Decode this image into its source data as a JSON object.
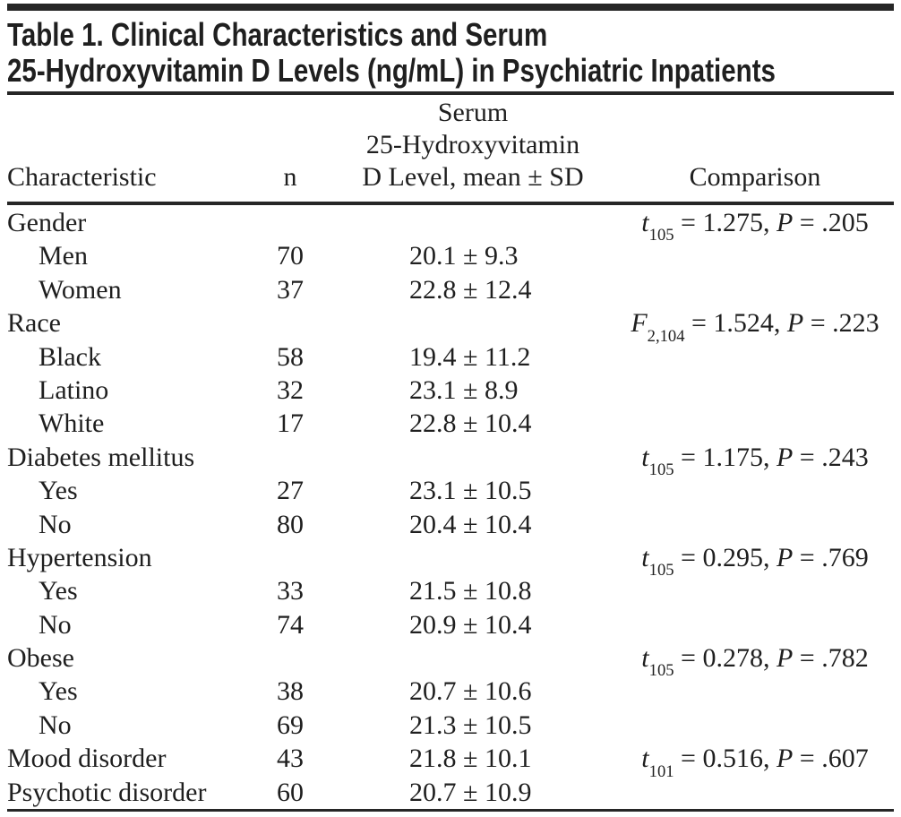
{
  "title": {
    "line1": "Table 1. Clinical Characteristics and Serum",
    "line2": "25-Hydroxyvitamin D Levels (ng/mL) in Psychiatric Inpatients"
  },
  "header": {
    "characteristic": "Characteristic",
    "n": "n",
    "serum_line1": "Serum",
    "serum_line2": "25-Hydroxyvitamin",
    "serum_line3": "D Level, mean ± SD",
    "comparison": "Comparison"
  },
  "colors": {
    "background": "#ffffff",
    "text": "#1f1f1f",
    "rule": "#262626"
  },
  "rows": [
    {
      "label": "Gender",
      "indent": 0,
      "n": "",
      "mean": "",
      "comparison": {
        "stat": "t",
        "sub": "105",
        "eq": " = 1.275, ",
        "p": "P",
        "peq": " = .205"
      }
    },
    {
      "label": "Men",
      "indent": 1,
      "n": "70",
      "mean": "20.1 ± 9.3"
    },
    {
      "label": "Women",
      "indent": 1,
      "n": "37",
      "mean": "22.8 ± 12.4"
    },
    {
      "label": "Race",
      "indent": 0,
      "n": "",
      "mean": "",
      "comparison": {
        "stat": "F",
        "sub": "2,104",
        "eq": " = 1.524, ",
        "p": "P",
        "peq": " = .223"
      }
    },
    {
      "label": "Black",
      "indent": 1,
      "n": "58",
      "mean": "19.4 ± 11.2"
    },
    {
      "label": "Latino",
      "indent": 1,
      "n": "32",
      "mean": "23.1 ± 8.9"
    },
    {
      "label": "White",
      "indent": 1,
      "n": "17",
      "mean": "22.8 ± 10.4"
    },
    {
      "label": "Diabetes mellitus",
      "indent": 0,
      "n": "",
      "mean": "",
      "comparison": {
        "stat": "t",
        "sub": "105",
        "eq": " = 1.175, ",
        "p": "P",
        "peq": " = .243"
      }
    },
    {
      "label": "Yes",
      "indent": 1,
      "n": "27",
      "mean": "23.1 ± 10.5"
    },
    {
      "label": "No",
      "indent": 1,
      "n": "80",
      "mean": "20.4 ± 10.4"
    },
    {
      "label": "Hypertension",
      "indent": 0,
      "n": "",
      "mean": "",
      "comparison": {
        "stat": "t",
        "sub": "105",
        "eq": " = 0.295, ",
        "p": "P",
        "peq": " = .769"
      }
    },
    {
      "label": "Yes",
      "indent": 1,
      "n": "33",
      "mean": "21.5 ± 10.8"
    },
    {
      "label": "No",
      "indent": 1,
      "n": "74",
      "mean": "20.9 ± 10.4"
    },
    {
      "label": "Obese",
      "indent": 0,
      "n": "",
      "mean": "",
      "comparison": {
        "stat": "t",
        "sub": "105",
        "eq": " = 0.278, ",
        "p": "P",
        "peq": " = .782"
      }
    },
    {
      "label": "Yes",
      "indent": 1,
      "n": "38",
      "mean": "20.7 ± 10.6"
    },
    {
      "label": "No",
      "indent": 1,
      "n": "69",
      "mean": "21.3 ± 10.5"
    },
    {
      "label": "Mood disorder",
      "indent": 0,
      "n": "43",
      "mean": "21.8 ± 10.1",
      "comparison": {
        "stat": "t",
        "sub": "101",
        "eq": " = 0.516, ",
        "p": "P",
        "peq": " = .607"
      }
    },
    {
      "label": "Psychotic disorder",
      "indent": 0,
      "n": "60",
      "mean": "20.7 ± 10.9"
    }
  ]
}
